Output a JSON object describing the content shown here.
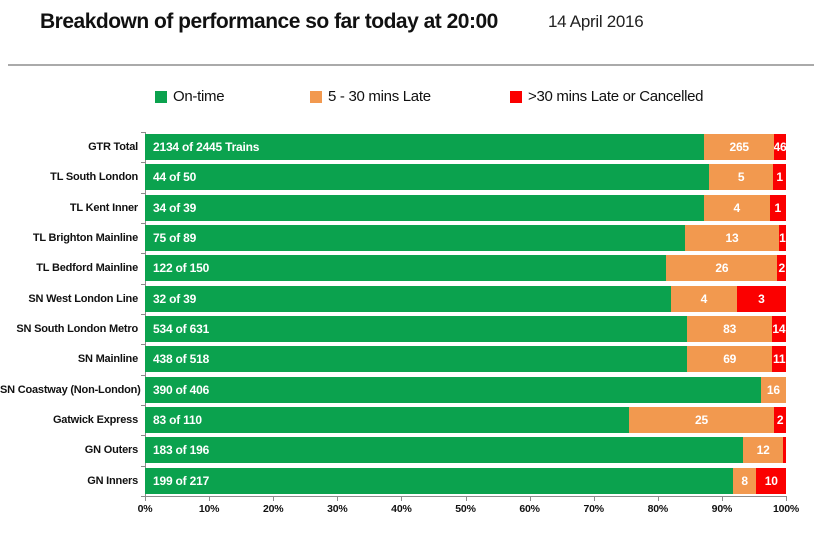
{
  "header": {
    "title": "Breakdown of performance so far today at 20:00",
    "date": "14 April 2016"
  },
  "legend": [
    {
      "label": "On-time",
      "color": "#0ba24e"
    },
    {
      "label": "5 - 30 mins Late",
      "color": "#f2994f"
    },
    {
      "label": ">30 mins Late or Cancelled",
      "color": "#fb0000"
    }
  ],
  "chart_data": {
    "type": "bar",
    "orientation": "horizontal",
    "stacked": true,
    "grid": false,
    "legend_position": "top",
    "xlim": [
      0,
      100
    ],
    "x_tick_labels": [
      "0%",
      "10%",
      "20%",
      "30%",
      "40%",
      "50%",
      "60%",
      "70%",
      "80%",
      "90%",
      "100%"
    ],
    "categories": [
      "GTR Total",
      "TL South London",
      "TL Kent Inner",
      "TL Brighton Mainline",
      "TL Bedford Mainline",
      "SN West London Line",
      "SN South London Metro",
      "SN Mainline",
      "SN Coastway (Non-London)",
      "Gatwick Express",
      "GN Outers",
      "GN Inners"
    ],
    "totals": [
      2445,
      50,
      39,
      89,
      150,
      39,
      631,
      518,
      406,
      110,
      196,
      217
    ],
    "series": [
      {
        "name": "On-time",
        "color": "#0ba24e",
        "values": [
          2134,
          44,
          34,
          75,
          122,
          32,
          534,
          438,
          390,
          83,
          183,
          199
        ]
      },
      {
        "name": "5 - 30 mins Late",
        "color": "#f2994f",
        "values": [
          265,
          5,
          4,
          13,
          26,
          4,
          83,
          69,
          16,
          25,
          12,
          8
        ]
      },
      {
        "name": ">30 mins Late or Cancelled",
        "color": "#fb0000",
        "values": [
          46,
          1,
          1,
          1,
          2,
          3,
          14,
          11,
          0,
          2,
          1,
          10
        ]
      }
    ],
    "on_time_labels": [
      "2134 of 2445 Trains",
      "44 of 50",
      "34 of 39",
      "75 of 89",
      "122 of 150",
      "32 of 39",
      "534 of 631",
      "438 of 518",
      "390 of 406",
      "83 of 110",
      "183 of 196",
      "199 of 217"
    ]
  }
}
